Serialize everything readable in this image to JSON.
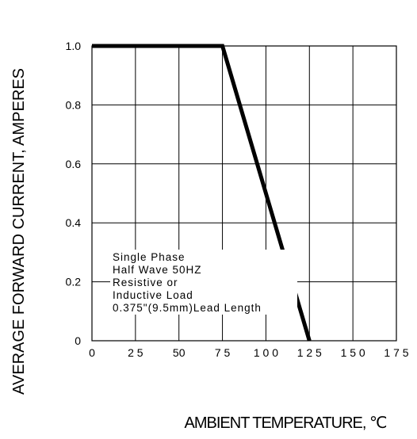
{
  "chart_data": {
    "type": "line",
    "title": "",
    "xlabel": "AMBIENT TEMPERATURE, ℃",
    "ylabel": "AVERAGE  FORWARD CURRENT, AMPERES",
    "xlim": [
      0,
      175
    ],
    "ylim": [
      0,
      1.0
    ],
    "xticks": [
      0,
      25,
      50,
      75,
      100,
      125,
      150,
      175
    ],
    "xtick_labels": [
      "0",
      "2 5",
      "50",
      "7 5",
      "1 0 0",
      "1 2 5",
      "1 5 0",
      "1 7 5"
    ],
    "yticks": [
      0,
      0.2,
      0.4,
      0.6,
      0.8,
      1.0
    ],
    "ytick_labels": [
      "0",
      "0.2",
      "0.4",
      "0.6",
      "0.8",
      "1.0"
    ],
    "grid": true,
    "grid_x_spacing": 25,
    "grid_y_spacing": 0.2,
    "series": [
      {
        "x": [
          0,
          75,
          125
        ],
        "y": [
          1.0,
          1.0,
          0
        ],
        "color": "#000000"
      }
    ],
    "annotation": [
      "Single Phase",
      "Half Wave 50HZ",
      "Resistive or",
      "Inductive Load",
      "0.375\"(9.5mm)Lead Length"
    ]
  }
}
